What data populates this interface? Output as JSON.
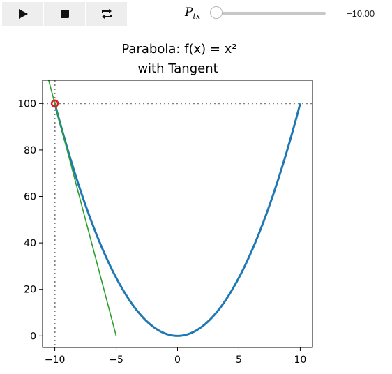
{
  "controls": {
    "play_icon": "play-icon",
    "stop_icon": "stop-icon",
    "loop_icon": "loop-icon",
    "slider_label": "P",
    "slider_label_sub": "tx",
    "slider_value": "−10.00",
    "slider_min": -10,
    "slider_max": 10,
    "slider_current": -10
  },
  "chart_data": {
    "type": "line",
    "title_line1": "Parabola: f(x) = x²",
    "title_line2": "with Tangent",
    "xlim": [
      -11,
      11
    ],
    "ylim": [
      -5,
      110
    ],
    "xticks": [
      -10,
      -5,
      0,
      5,
      10
    ],
    "xtick_labels": [
      "−10",
      "−5",
      "0",
      "5",
      "10"
    ],
    "yticks": [
      0,
      20,
      40,
      60,
      80,
      100
    ],
    "ytick_labels": [
      "0",
      "20",
      "40",
      "60",
      "80",
      "100"
    ],
    "grid": false,
    "colors": {
      "parabola": "#1f77b4",
      "tangent": "#2ca02c",
      "point": "#e41a1c",
      "guide": "#808080"
    },
    "series": [
      {
        "function": "x^2",
        "x_range": [
          -10,
          10
        ]
      },
      {
        "function": "tangent",
        "x": [
          -11,
          -5
        ],
        "y": [
          120,
          0
        ]
      }
    ],
    "point": {
      "x": -10,
      "y": 100
    },
    "guides": {
      "vertical_x": -10,
      "horizontal_y": 100
    }
  }
}
